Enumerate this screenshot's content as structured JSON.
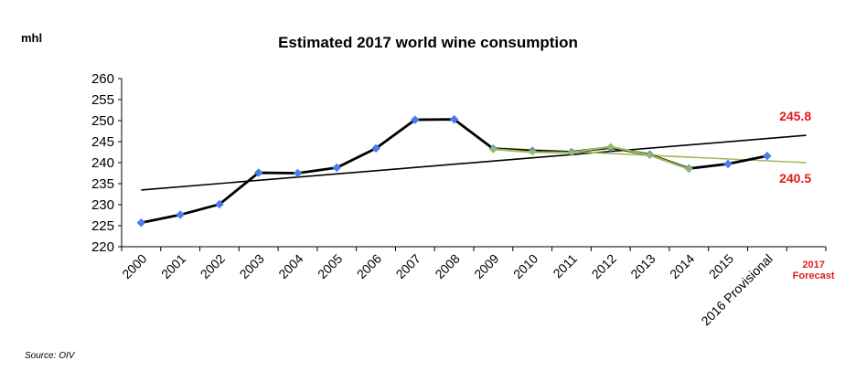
{
  "unit_label": "mhl",
  "title": "Estimated 2017 world wine consumption",
  "source": "Source: OIV",
  "chart_data": {
    "type": "line",
    "title": "Estimated 2017 world wine consumption",
    "ylabel": "mhl",
    "xlabel": "",
    "ylim": [
      220,
      260
    ],
    "yticks": [
      220,
      225,
      230,
      235,
      240,
      245,
      250,
      255,
      260
    ],
    "categories": [
      "2000",
      "2001",
      "2002",
      "2003",
      "2004",
      "2005",
      "2006",
      "2007",
      "2008",
      "2009",
      "2010",
      "2011",
      "2012",
      "2013",
      "2014",
      "2015",
      "2016 Provisional",
      "2017 Forecast"
    ],
    "series": [
      {
        "values": [
          225.7,
          227.6,
          230.1,
          237.6,
          237.5,
          238.8,
          243.4,
          250.2,
          250.3,
          243.3,
          242.8,
          242.5,
          243.6,
          241.9,
          238.6,
          239.7,
          241.6,
          null
        ],
        "color": "#000000",
        "marker_color": "#4a7cf0"
      },
      {
        "values": [
          null,
          null,
          null,
          null,
          null,
          null,
          null,
          null,
          null,
          243.2,
          242.5,
          242.4,
          243.8,
          241.8,
          238.5,
          null,
          null,
          null
        ],
        "color": "#9bbb59",
        "marker_color": "#9bbb59"
      }
    ],
    "trendlines": [
      {
        "from_category": "2000",
        "to_category": "2017 Forecast",
        "start": 233.5,
        "end": 246.5,
        "color": "#000000"
      },
      {
        "from_category": "2009",
        "to_category": "2017 Forecast",
        "start": 243.5,
        "end": 240.0,
        "color": "#9bbb59"
      }
    ],
    "annotations": [
      {
        "text": "245.8",
        "color": "#e31b1b"
      },
      {
        "text": "240.5",
        "color": "#e31b1b"
      }
    ],
    "highlight_color": "#e31b1b"
  }
}
